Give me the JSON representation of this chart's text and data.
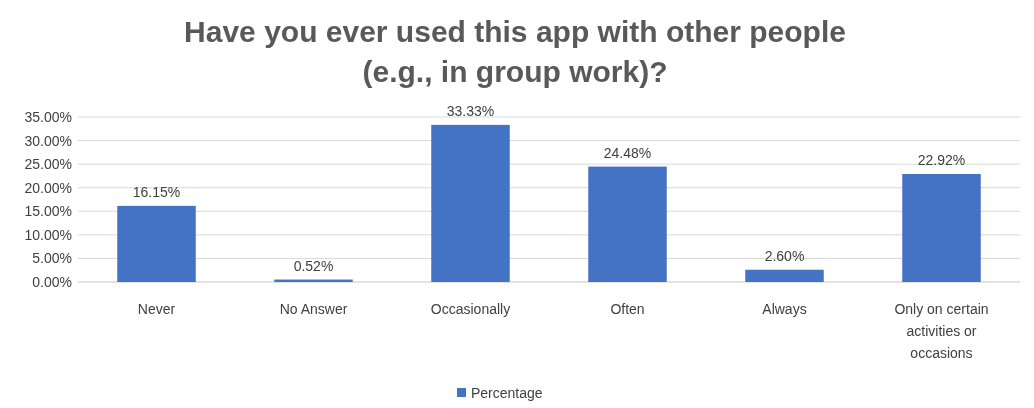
{
  "chart_data": {
    "type": "bar",
    "title": "Have you ever used this app with other people (e.g., in group work)?",
    "categories": [
      "Never",
      "No Answer",
      "Occasionally",
      "Often",
      "Always",
      "Only on certain activities or occasions"
    ],
    "series": [
      {
        "name": "Percentage",
        "color": "#4472c4",
        "values": [
          16.15,
          0.52,
          33.33,
          24.48,
          2.6,
          22.92
        ],
        "value_labels": [
          "16.15%",
          "0.52%",
          "33.33%",
          "24.48%",
          "2.60%",
          "22.92%"
        ]
      }
    ],
    "ylim": [
      0,
      35
    ],
    "yticks": [
      {
        "value": 0,
        "label": "0.00%"
      },
      {
        "value": 5,
        "label": "5.00%"
      },
      {
        "value": 10,
        "label": "10.00%"
      },
      {
        "value": 15,
        "label": "15.00%"
      },
      {
        "value": 20,
        "label": "20.00%"
      },
      {
        "value": 25,
        "label": "25.00%"
      },
      {
        "value": 30,
        "label": "30.00%"
      },
      {
        "value": 35,
        "label": "35.00%"
      }
    ],
    "grid": "y",
    "legend": "bottom"
  }
}
